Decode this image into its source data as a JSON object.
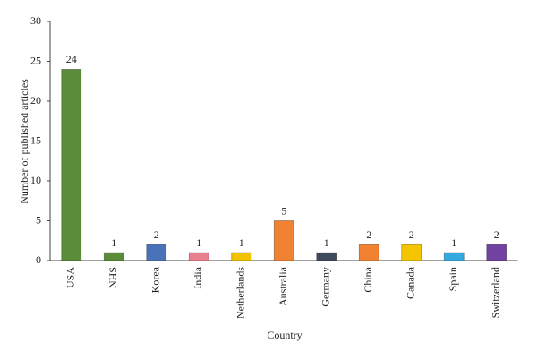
{
  "chart_data": {
    "type": "bar",
    "x_label": "Country",
    "y_label": "Number of published articles",
    "categories": [
      "USA",
      "NHS",
      "Korea",
      "India",
      "Netherlands",
      "Australia",
      "Germany",
      "China",
      "Canada",
      "Spain",
      "Switzerland"
    ],
    "values": [
      24,
      1,
      2,
      1,
      1,
      5,
      1,
      2,
      2,
      1,
      2
    ],
    "colors": [
      "#5b8c3a",
      "#5b8c3a",
      "#4a72b8",
      "#e8808e",
      "#f2c200",
      "#f08232",
      "#3f4b5c",
      "#f08232",
      "#f5c400",
      "#33a9e0",
      "#7242a2"
    ],
    "ylim": [
      0,
      30
    ],
    "yticks": [
      0,
      5,
      10,
      15,
      20,
      25,
      30
    ]
  }
}
